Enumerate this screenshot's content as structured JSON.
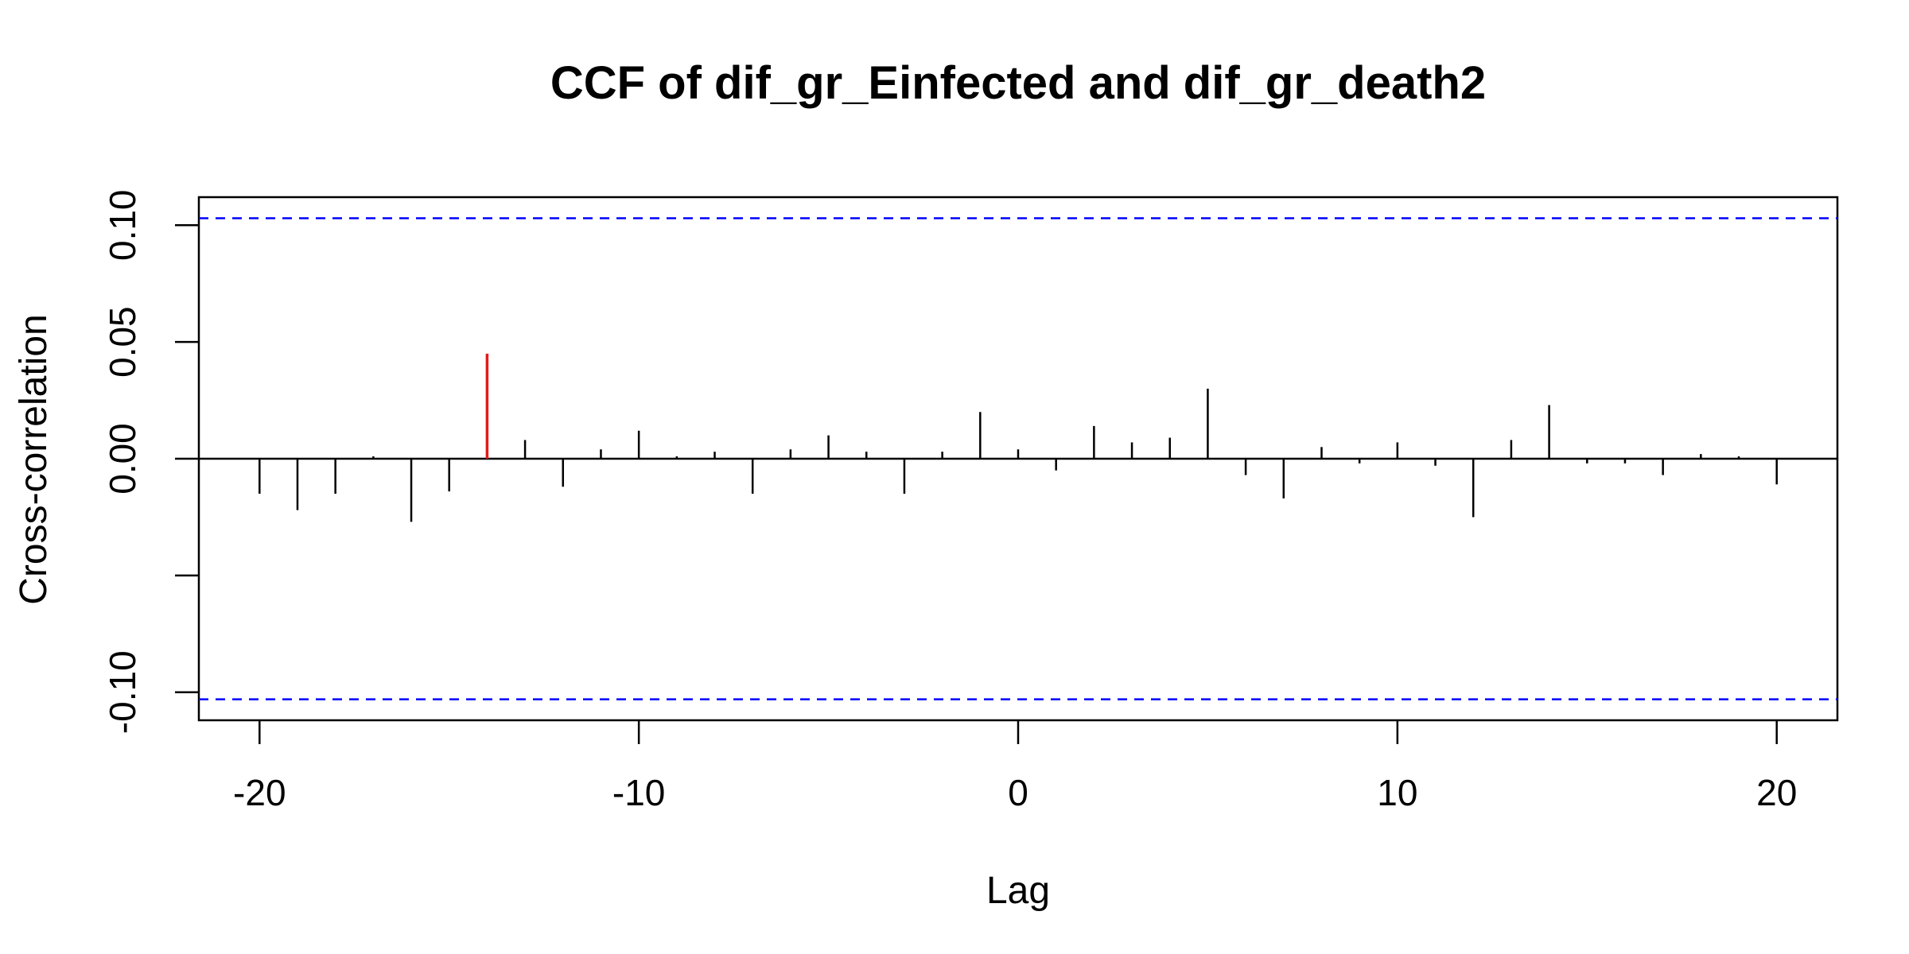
{
  "chart_data": {
    "type": "bar",
    "title": "CCF of dif_gr_Einfected and dif_gr_death2",
    "xlabel": "Lag",
    "ylabel": "Cross-correlation",
    "xlim": [
      -21.6,
      21.6
    ],
    "ylim": [
      -0.112,
      0.112
    ],
    "x_ticks": [
      -20,
      -10,
      0,
      10,
      20
    ],
    "x_tick_labels": [
      "-20",
      "-10",
      "0",
      "10",
      "20"
    ],
    "y_ticks": [
      -0.1,
      -0.05,
      0.0,
      0.05,
      0.1
    ],
    "y_tick_labels": [
      "-0.10",
      "",
      "0.00",
      "0.05",
      "0.10"
    ],
    "confidence_bound": 0.103,
    "colors": {
      "bar": "#000000",
      "highlight": "#e31a1c",
      "bound": "#0000ff"
    },
    "highlight_lag": -14,
    "lags": [
      -20,
      -19,
      -18,
      -17,
      -16,
      -15,
      -14,
      -13,
      -12,
      -11,
      -10,
      -9,
      -8,
      -7,
      -6,
      -5,
      -4,
      -3,
      -2,
      -1,
      0,
      1,
      2,
      3,
      4,
      5,
      6,
      7,
      8,
      9,
      10,
      11,
      12,
      13,
      14,
      15,
      16,
      17,
      18,
      19,
      20
    ],
    "values": [
      -0.015,
      -0.022,
      -0.015,
      0.001,
      -0.027,
      -0.014,
      0.045,
      0.008,
      -0.012,
      0.004,
      0.012,
      0.001,
      0.003,
      -0.015,
      0.004,
      0.01,
      0.003,
      -0.015,
      0.003,
      0.02,
      0.004,
      -0.005,
      0.014,
      0.007,
      0.009,
      0.03,
      -0.007,
      -0.017,
      0.005,
      -0.002,
      0.007,
      -0.003,
      -0.025,
      0.008,
      0.023,
      -0.002,
      -0.002,
      -0.007,
      0.002,
      0.001,
      -0.011
    ]
  }
}
